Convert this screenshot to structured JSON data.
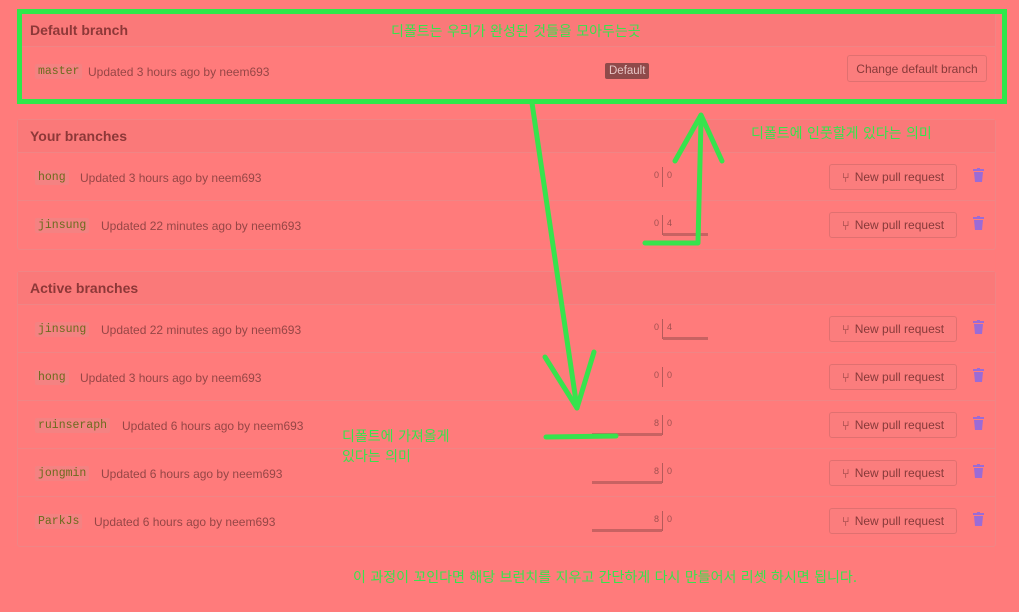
{
  "default_section": {
    "title": "Default branch",
    "branch": {
      "name": "master",
      "meta": "Updated 3 hours ago by neem693",
      "badge": "Default"
    },
    "change_button": "Change default branch"
  },
  "your_section": {
    "title": "Your branches",
    "rows": [
      {
        "name": "hong",
        "meta": "Updated 3 hours ago by neem693",
        "behind": "0",
        "ahead": "0",
        "behind_frac": 0,
        "ahead_frac": 0
      },
      {
        "name": "jinsung",
        "meta": "Updated 22 minutes ago by neem693",
        "behind": "0",
        "ahead": "4",
        "behind_frac": 0,
        "ahead_frac": 1
      }
    ]
  },
  "active_section": {
    "title": "Active branches",
    "rows": [
      {
        "name": "jinsung",
        "meta": "Updated 22 minutes ago by neem693",
        "behind": "0",
        "ahead": "4",
        "behind_frac": 0,
        "ahead_frac": 1
      },
      {
        "name": "hong",
        "meta": "Updated 3 hours ago by neem693",
        "behind": "0",
        "ahead": "0",
        "behind_frac": 0,
        "ahead_frac": 0
      },
      {
        "name": "ruinseraph",
        "meta": "Updated 6 hours ago by neem693",
        "behind": "8",
        "ahead": "0",
        "behind_frac": 1,
        "ahead_frac": 0
      },
      {
        "name": "jongmin",
        "meta": "Updated 6 hours ago by neem693",
        "behind": "8",
        "ahead": "0",
        "behind_frac": 1,
        "ahead_frac": 0
      },
      {
        "name": "ParkJs",
        "meta": "Updated 6 hours ago by neem693",
        "behind": "8",
        "ahead": "0",
        "behind_frac": 1,
        "ahead_frac": 0
      }
    ]
  },
  "new_pr_label": "New pull request",
  "annotations": {
    "top": "디폴트는 우리가  완성된 것들을 모아두는곳",
    "right": "디폴트에 인풋할게 있다는 의미",
    "middle": "디폴트에 가져올게\n있다는 의미",
    "bottom": "이 과정이 꼬인다면 해당 브런치를 지우고 간단하게 다시 만들어서 리셋 하시면 됩니다."
  },
  "colors": {
    "annotation_green": "#37e34d",
    "background": "#ff7b7b"
  },
  "icons": {
    "pull_request": "git-pull-request-icon",
    "delete": "trash-icon"
  }
}
